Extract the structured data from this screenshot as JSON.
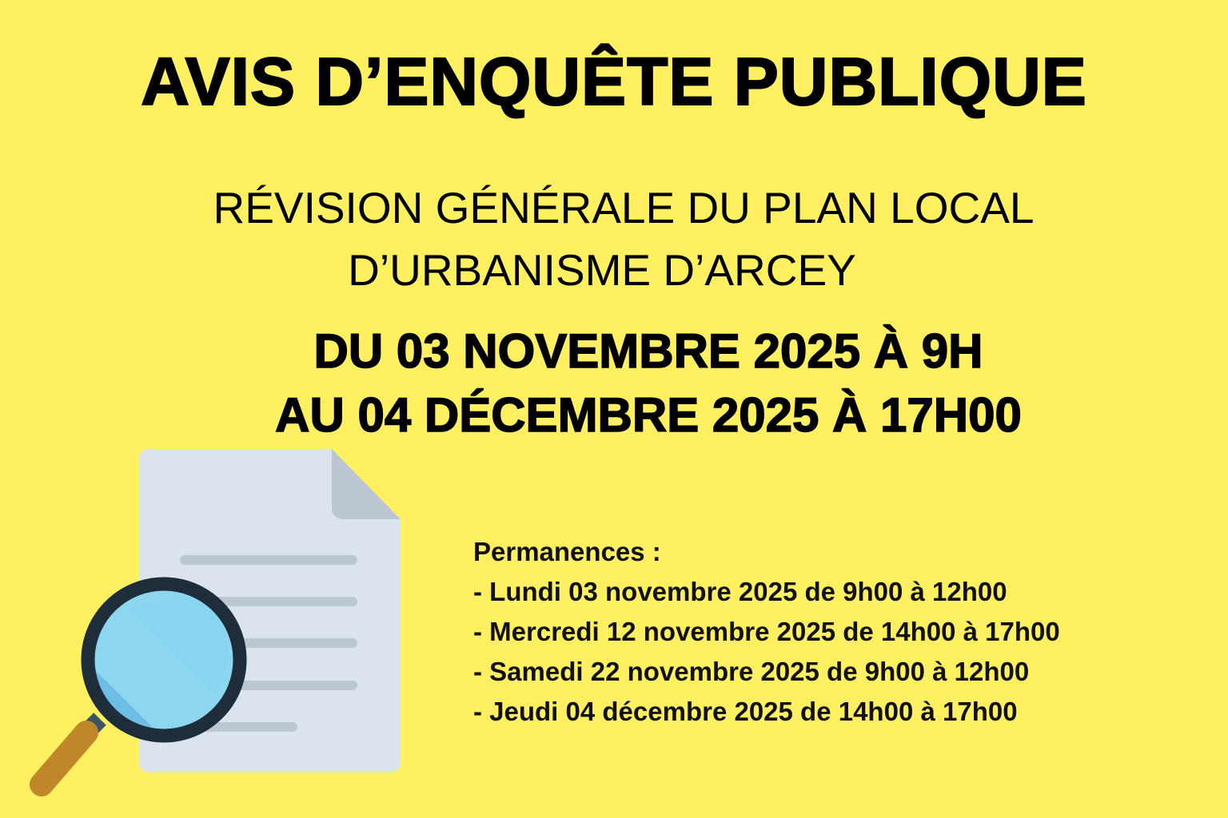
{
  "title": "AVIS D’ENQUÊTE PUBLIQUE",
  "subject": {
    "line1": "RÉVISION GÉNÉRALE DU PLAN LOCAL",
    "line2": "D’URBANISME D’ARCEY"
  },
  "period": {
    "line1": "DU 03 NOVEMBRE 2025 À 9H",
    "line2": "AU 04 DÉCEMBRE 2025 À 17H00"
  },
  "permanences": {
    "heading": "Permanences :",
    "items": [
      "- Lundi 03 novembre 2025 de 9h00 à 12h00",
      "- Mercredi 12 novembre 2025 de 14h00 à 17h00",
      "- Samedi 22 novembre 2025 de 9h00 à 12h00",
      "- Jeudi 04 décembre 2025 de 14h00 à 17h00"
    ]
  },
  "illustration": {
    "icons": [
      "document-icon",
      "magnifying-glass-icon"
    ]
  },
  "colors": {
    "background": "#fef060",
    "text": "#000000",
    "document": "#dbe3ec",
    "document_lines": "#bcc7d1",
    "lens_ring": "#1f2d3a",
    "lens_glass": "#8dd6f0",
    "handle": "#c0862a"
  }
}
